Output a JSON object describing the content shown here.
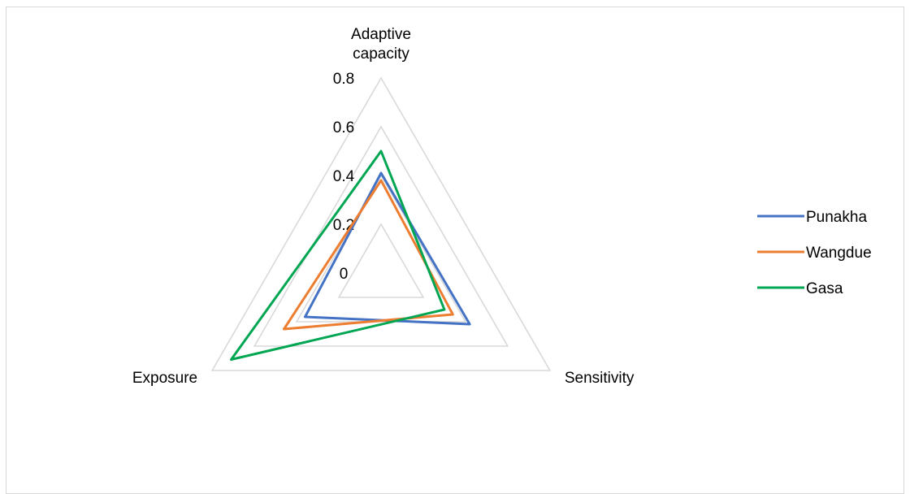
{
  "chart_data": {
    "type": "radar",
    "title": "",
    "axes": [
      "Adaptive capacity",
      "Sensitivity",
      "Exposure"
    ],
    "axis_label_lines": {
      "Adaptive capacity": [
        "Adaptive",
        "capacity"
      ],
      "Sensitivity": [
        "Sensitivity"
      ],
      "Exposure": [
        "Exposure"
      ]
    },
    "rlim": [
      0,
      0.8
    ],
    "ticks": [
      0,
      0.2,
      0.4,
      0.6,
      0.8
    ],
    "tick_labels": [
      "0",
      "0.2",
      "0.4",
      "0.6",
      "0.8"
    ],
    "grid": true,
    "legend_position": "right",
    "series": [
      {
        "name": "Punakha",
        "color": "#4472c4",
        "values": [
          0.41,
          0.42,
          0.36
        ]
      },
      {
        "name": "Wangdue",
        "color": "#ed7d31",
        "values": [
          0.38,
          0.34,
          0.46
        ]
      },
      {
        "name": "Gasa",
        "color": "#00a651",
        "values": [
          0.5,
          0.3,
          0.71
        ]
      }
    ]
  }
}
